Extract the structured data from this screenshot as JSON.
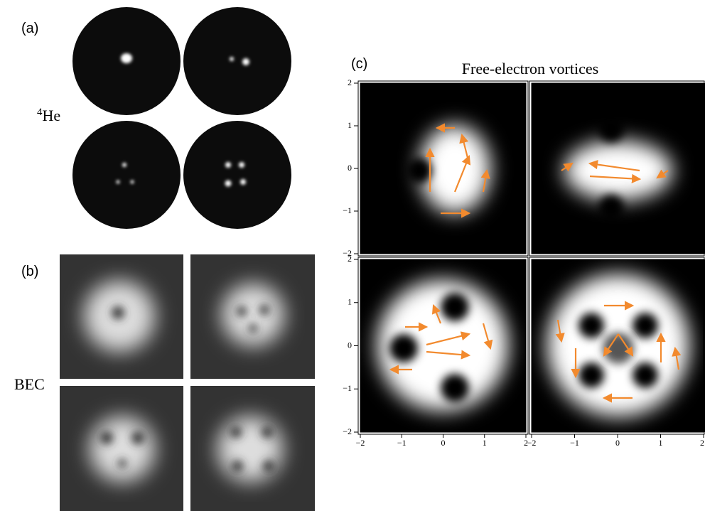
{
  "panels": {
    "a": {
      "label": "(a)",
      "sample": {
        "isotope": "4",
        "element": "He"
      }
    },
    "b": {
      "label": "(b)",
      "sample": "BEC"
    },
    "c": {
      "label": "(c)",
      "title": "Free-electron vortices",
      "xlim": [
        -2,
        2
      ],
      "ylim": [
        -2,
        2
      ],
      "xticks": [
        {
          "value": -2,
          "label": "−2"
        },
        {
          "value": -1,
          "label": "−1"
        },
        0,
        1,
        2
      ],
      "yticks": [
        {
          "value": -2,
          "label": "−2"
        },
        {
          "value": -1,
          "label": "−1"
        },
        0,
        1,
        2
      ]
    }
  }
}
